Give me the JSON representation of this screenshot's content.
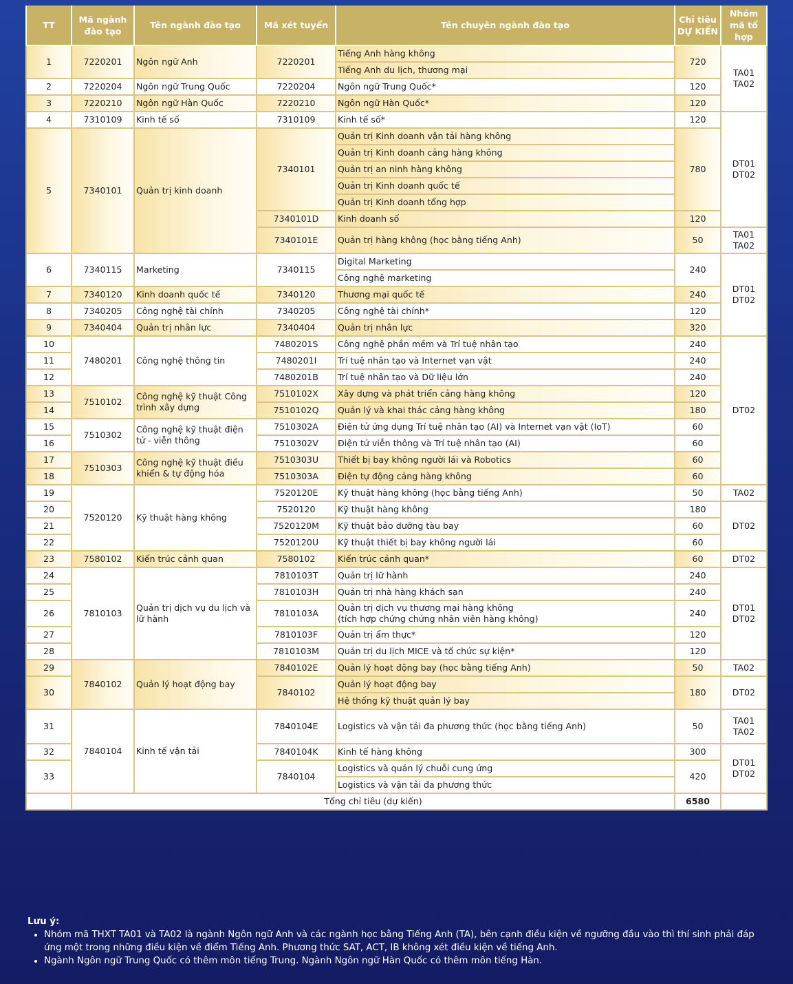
{
  "header": [
    "TT",
    "Mã ngành\nđào tạo",
    "Tên ngành đào tạo",
    "Mã xét tuyển",
    "Tên chuyên ngành đào tạo",
    "Chỉ tiêu\nDỰ KIẾN",
    "Nhóm\nmã tổ\nhợp"
  ],
  "tt": [
    [
      "1",
      2
    ],
    [
      "2",
      1
    ],
    [
      "3",
      1
    ],
    [
      "4",
      1
    ],
    [
      "5",
      7
    ],
    [
      "6",
      2
    ],
    [
      "7",
      1
    ],
    [
      "8",
      1
    ],
    [
      "9",
      1
    ],
    [
      "10",
      1
    ],
    [
      "11",
      1
    ],
    [
      "12",
      1
    ],
    [
      "13",
      1
    ],
    [
      "14",
      1
    ],
    [
      "15",
      1
    ],
    [
      "16",
      1
    ],
    [
      "17",
      1
    ],
    [
      "18",
      1
    ],
    [
      "19",
      1
    ],
    [
      "20",
      1
    ],
    [
      "21",
      1
    ],
    [
      "22",
      1
    ],
    [
      "23",
      1
    ],
    [
      "24",
      1
    ],
    [
      "25",
      1
    ],
    [
      "26",
      1
    ],
    [
      "27",
      1
    ],
    [
      "28",
      1
    ],
    [
      "29",
      1
    ],
    [
      "30",
      2
    ],
    [
      "31",
      1
    ],
    [
      "32",
      1
    ],
    [
      "33",
      2
    ]
  ],
  "ma_nganh": [
    [
      "7220201",
      2
    ],
    [
      "7220204",
      1
    ],
    [
      "7220210",
      1
    ],
    [
      "7310109",
      1
    ],
    [
      "7340101",
      7
    ],
    [
      "7340115",
      2
    ],
    [
      "7340120",
      1
    ],
    [
      "7340205",
      1
    ],
    [
      "7340404",
      1
    ],
    [
      "7480201",
      3
    ],
    [
      "7510102",
      2
    ],
    [
      "7510302",
      2
    ],
    [
      "7510303",
      2
    ],
    [
      "7520120",
      4
    ],
    [
      "7580102",
      1
    ],
    [
      "7810103",
      5
    ],
    [
      "7840102",
      3
    ],
    [
      "7840104",
      4
    ]
  ],
  "ten_nganh": [
    [
      "Ngôn ngữ Anh",
      2
    ],
    [
      "Ngôn ngữ Trung Quốc",
      1
    ],
    [
      "Ngôn ngữ Hàn Quốc",
      1
    ],
    [
      "Kinh tế số",
      1
    ],
    [
      "Quản trị kinh doanh",
      7
    ],
    [
      "Marketing",
      2
    ],
    [
      "Kinh doanh quốc tế",
      1
    ],
    [
      "Công nghệ tài chính",
      1
    ],
    [
      "Quản trị nhân lực",
      1
    ],
    [
      "Công nghệ thông tin",
      3
    ],
    [
      "Công nghệ kỹ thuật Công trình xây dựng",
      2
    ],
    [
      "Công nghệ kỹ thuật điện tử - viễn thông",
      2
    ],
    [
      "Công nghệ kỹ thuật điều khiển & tự động hóa",
      2
    ],
    [
      "Kỹ thuật hàng không",
      4
    ],
    [
      "Kiến trúc cảnh quan",
      1
    ],
    [
      "Quản trị dịch vụ du lịch và lữ hành",
      5
    ],
    [
      "Quản lý hoạt động bay",
      3
    ],
    [
      "Kinh tế vận tải",
      4
    ]
  ],
  "ma_xet_tuyen": [
    [
      "7220201",
      2
    ],
    [
      "7220204",
      1
    ],
    [
      "7220210",
      1
    ],
    [
      "7310109",
      1
    ],
    [
      "7340101",
      5
    ],
    [
      "7340101D",
      1
    ],
    [
      "7340101E",
      1
    ],
    [
      "7340115",
      2
    ],
    [
      "7340120",
      1
    ],
    [
      "7340205",
      1
    ],
    [
      "7340404",
      1
    ],
    [
      "7480201S",
      1
    ],
    [
      "7480201I",
      1
    ],
    [
      "7480201B",
      1
    ],
    [
      "7510102X",
      1
    ],
    [
      "7510102Q",
      1
    ],
    [
      "7510302A",
      1
    ],
    [
      "7510302V",
      1
    ],
    [
      "7510303U",
      1
    ],
    [
      "7510303A",
      1
    ],
    [
      "7520120E",
      1
    ],
    [
      "7520120",
      1
    ],
    [
      "7520120M",
      1
    ],
    [
      "7520120U",
      1
    ],
    [
      "7580102",
      1
    ],
    [
      "7810103T",
      1
    ],
    [
      "7810103H",
      1
    ],
    [
      "7810103A",
      1
    ],
    [
      "7810103F",
      1
    ],
    [
      "7810103M",
      1
    ],
    [
      "7840102E",
      1
    ],
    [
      "7840102",
      2
    ],
    [
      "7840104E",
      1
    ],
    [
      "7840104K",
      1
    ],
    [
      "7840104",
      2
    ]
  ],
  "chuyen_nganh": [
    "Tiếng Anh hàng không",
    "Tiếng Anh du lịch, thương mại",
    "Ngôn ngữ Trung Quốc*",
    "Ngôn ngữ Hàn Quốc*",
    "Kinh tế số*",
    "Quản trị Kinh doanh vận tải hàng không",
    "Quản trị Kinh doanh cảng hàng không",
    "Quản trị an ninh hàng không",
    "Quản trị Kinh doanh quốc tế",
    "Quản trị Kinh doanh tổng hợp",
    "Kinh doanh số",
    "Quản trị hàng không (học bằng tiếng Anh)",
    "Digital Marketing",
    "Công nghệ marketing",
    "Thương mại quốc tế",
    "Công nghệ tài chính*",
    "Quản trị nhân lực",
    "Công nghệ phần mềm và Trí tuệ nhân tạo",
    "Trí tuệ nhân tạo và Internet vạn vật",
    "Trí tuệ nhân tạo và Dữ liệu lớn",
    "Xây dựng và phát triển cảng hàng không",
    "Quản lý và khai thác cảng hàng không",
    "Điện tử ứng dụng Trí tuệ nhân tạo (AI) và Internet vạn vật (IoT)",
    "Điện tử viễn thông và Trí tuệ nhân tạo (AI)",
    "Thiết bị bay không người lái và Robotics",
    "Điện tự động cảng hàng không",
    "Kỹ thuật hàng không (học bằng tiếng Anh)",
    "Kỹ thuật hàng không",
    "Kỹ thuật bảo dưỡng tàu bay",
    "Kỹ thuật thiết bị bay không người lái",
    "Kiến trúc cảnh quan*",
    "Quản trị lữ hành",
    "Quản trị nhà hàng khách sạn",
    "Quản trị dịch vụ thương mại hàng không\n(tích hợp chứng chứng nhân viên hàng không)",
    "Quản trị ẩm thực*",
    "Quản trị du lịch MICE và tổ chức sự kiện*",
    "Quản lý hoạt động bay (học bằng tiếng Anh)",
    "Quản lý hoạt động bay",
    "Hệ thống kỹ thuật quản lý bay",
    "Logistics và vận tải đa phương thức (học bằng tiếng Anh)",
    "Kinh tế hàng không",
    "Logistics và quản lý chuỗi cung ứng",
    "Logistics và vận tải đa phương thức"
  ],
  "chi_tieu": [
    [
      "720",
      2
    ],
    [
      "120",
      1
    ],
    [
      "120",
      1
    ],
    [
      "120",
      1
    ],
    [
      "780",
      5
    ],
    [
      "120",
      1
    ],
    [
      "50",
      1
    ],
    [
      "240",
      2
    ],
    [
      "240",
      1
    ],
    [
      "120",
      1
    ],
    [
      "320",
      1
    ],
    [
      "240",
      1
    ],
    [
      "240",
      1
    ],
    [
      "240",
      1
    ],
    [
      "120",
      1
    ],
    [
      "180",
      1
    ],
    [
      "60",
      1
    ],
    [
      "60",
      1
    ],
    [
      "60",
      1
    ],
    [
      "60",
      1
    ],
    [
      "50",
      1
    ],
    [
      "180",
      1
    ],
    [
      "60",
      1
    ],
    [
      "60",
      1
    ],
    [
      "60",
      1
    ],
    [
      "240",
      1
    ],
    [
      "240",
      1
    ],
    [
      "240",
      1
    ],
    [
      "120",
      1
    ],
    [
      "120",
      1
    ],
    [
      "50",
      1
    ],
    [
      "180",
      2
    ],
    [
      "50",
      1
    ],
    [
      "300",
      1
    ],
    [
      "420",
      2
    ]
  ],
  "nhom": [
    [
      "TA01\nTA02",
      4
    ],
    [
      "DT01\nDT02",
      7
    ],
    [
      "TA01\nTA02",
      1
    ],
    [
      "DT01\nDT02",
      5
    ],
    [
      "DT02",
      9
    ],
    [
      "TA02",
      1
    ],
    [
      "DT02",
      3
    ],
    [
      "DT02",
      1
    ],
    [
      "DT01\nDT02",
      5
    ],
    [
      "TA02",
      1
    ],
    [
      "DT02",
      2
    ],
    [
      "TA01\nTA02",
      1
    ],
    [
      "DT01\nDT02",
      3
    ]
  ],
  "total": {
    "label": "Tổng chỉ tiêu (dự kiến)",
    "value": "6580"
  },
  "notes": {
    "title": "Lưu ý:",
    "items": [
      "Nhóm mã THXT TA01 và TA02 là ngành Ngôn ngữ Anh và các ngành học bằng Tiếng Anh (TA), bên cạnh điều kiện về ngưỡng đầu vào thì thí sinh phải đáp ứng một trong những điều kiện về điểm Tiếng Anh. Phương thức SAT, ACT, IB không xét điều kiện về tiếng Anh.",
      "Ngành Ngôn ngữ Trung Quốc có thêm môn tiếng Trung. Ngành Ngôn ngữ Hàn Quốc có thêm môn tiếng Hàn."
    ]
  },
  "colors": {
    "header": "#c8b265",
    "border": "#d9c585",
    "highlight": "#f8e3a7",
    "background": "#1a2f85"
  }
}
